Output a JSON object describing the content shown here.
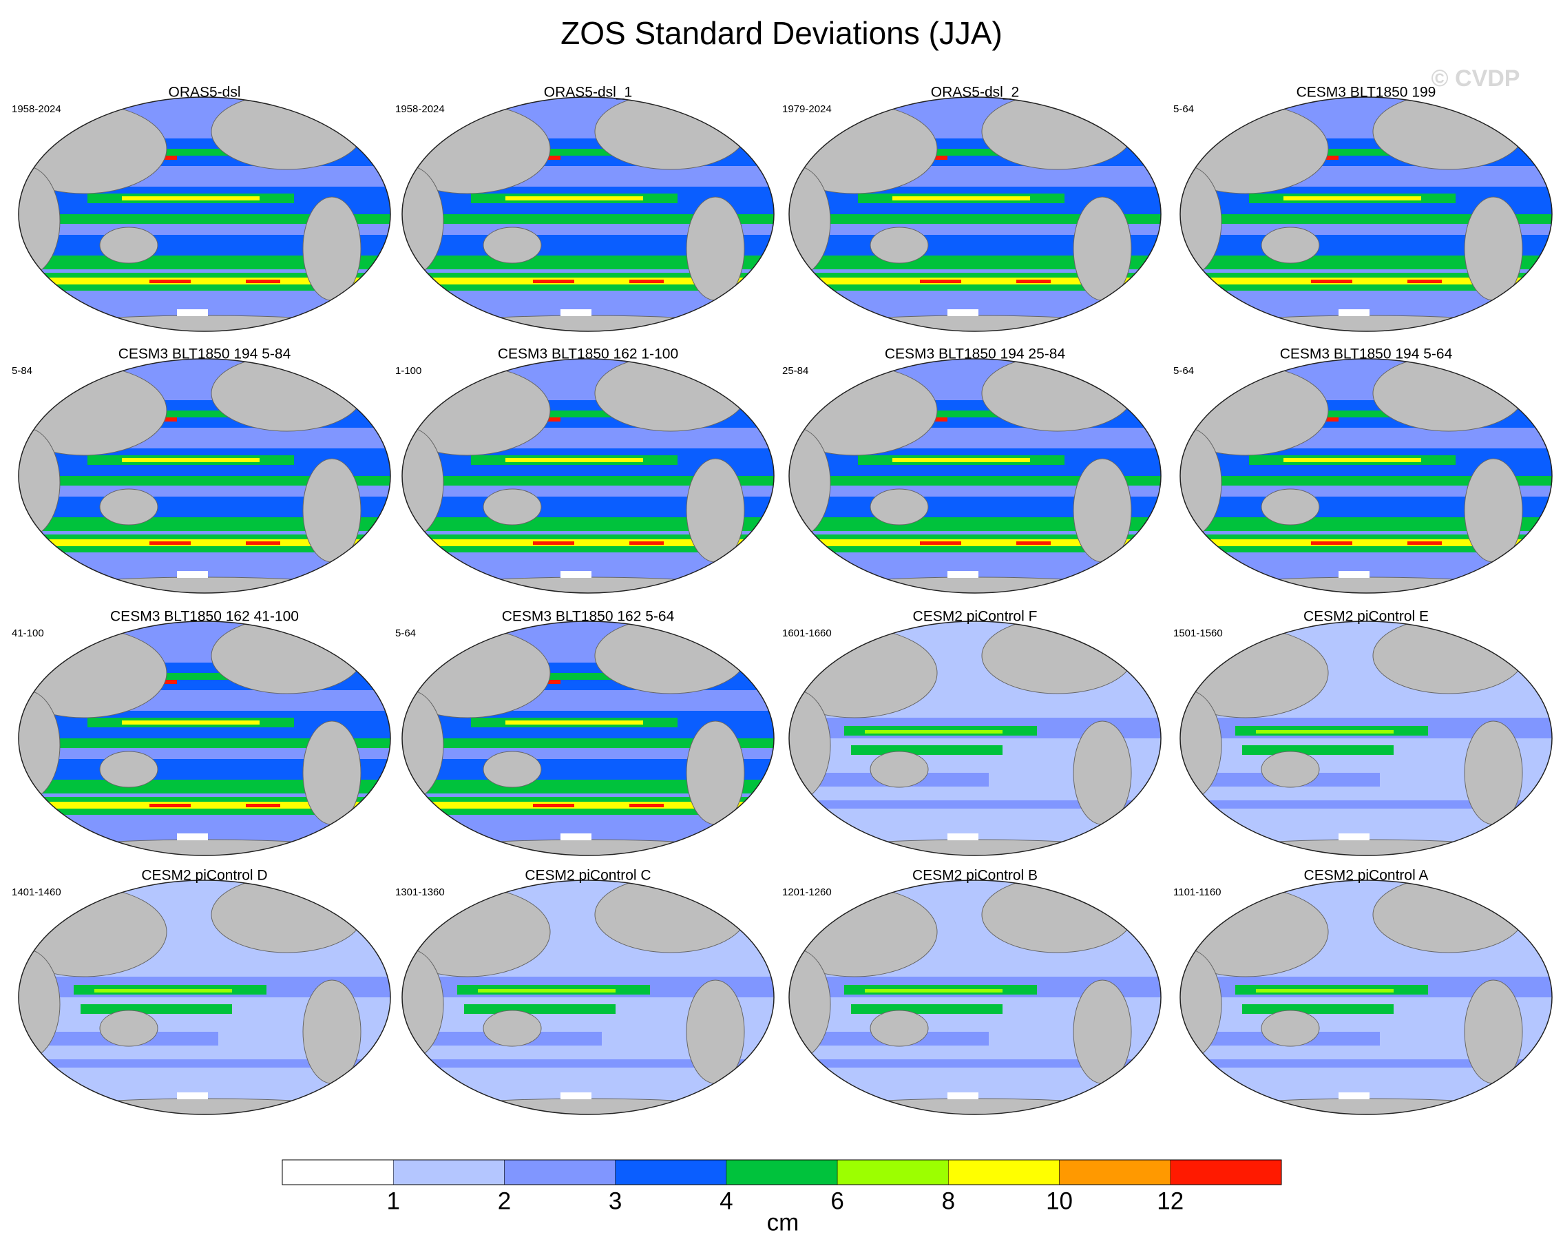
{
  "title": "ZOS Standard Deviations (JJA)",
  "watermark": "© CVDP",
  "panels": [
    {
      "title": "ORAS5-dsl",
      "period": "1958-2024"
    },
    {
      "title": "ORAS5-dsl_1",
      "period": "1958-2024"
    },
    {
      "title": "ORAS5-dsl_2",
      "period": "1979-2024"
    },
    {
      "title": "CESM3 BLT1850 199",
      "period": "5-64"
    },
    {
      "title": "CESM3 BLT1850 194 5-84",
      "period": "5-84"
    },
    {
      "title": "CESM3 BLT1850 162 1-100",
      "period": "1-100"
    },
    {
      "title": "CESM3 BLT1850 194 25-84",
      "period": "25-84"
    },
    {
      "title": "CESM3 BLT1850 194 5-64",
      "period": "5-64"
    },
    {
      "title": "CESM3 BLT1850 162 41-100",
      "period": "41-100"
    },
    {
      "title": "CESM3 BLT1850 162 5-64",
      "period": "5-64"
    },
    {
      "title": "CESM2 piControl F",
      "period": "1601-1660"
    },
    {
      "title": "CESM2 piControl E",
      "period": "1501-1560"
    },
    {
      "title": "CESM2 piControl D",
      "period": "1401-1460"
    },
    {
      "title": "CESM2 piControl C",
      "period": "1301-1360"
    },
    {
      "title": "CESM2 piControl B",
      "period": "1201-1260"
    },
    {
      "title": "CESM2 piControl A",
      "period": "1101-1160"
    }
  ],
  "colorbar": {
    "levels": [
      1,
      2,
      3,
      4,
      6,
      8,
      10,
      12
    ],
    "colors": [
      "#ffffff",
      "#b4c6ff",
      "#8096ff",
      "#0a5eff",
      "#00c23c",
      "#9cff00",
      "#ffff00",
      "#ff9900",
      "#ff1a00"
    ],
    "label": "cm"
  }
}
